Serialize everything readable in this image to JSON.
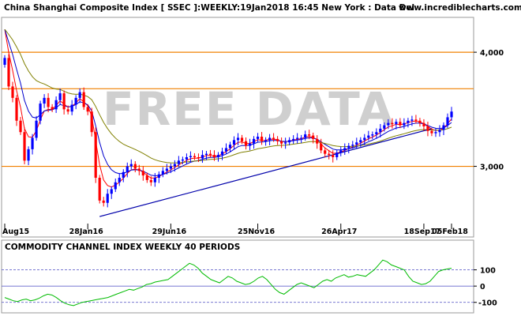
{
  "header": {
    "title": "China Shanghai Composite Index [ SSEC ]:WEEKLY:19Jan2018 16:45 New York : Data Del..",
    "site": "www.incrediblecharts.com"
  },
  "watermark": "FREE DATA",
  "chart_data": [
    {
      "type": "candlestick",
      "title": "China Shanghai Composite Index [ SSEC ]:WEEKLY:19Jan2018 16:45 New York : Data Del..",
      "x_tick_labels": [
        "Aug15",
        "28Jan16",
        "29Jun16",
        "25Nov16",
        "26Apr17",
        "18Sep17",
        "05Feb18"
      ],
      "y_tick_labels": [
        "4,000",
        "3,000"
      ],
      "ylim": [
        2450,
        4250
      ],
      "grid": false,
      "horizontal_lines": [
        4000,
        3680,
        3000
      ],
      "colors": {
        "up": "#0000ff",
        "down": "#ff0000",
        "horizontal_lines": "#f08000",
        "ma_fast": "#ff0000",
        "ma_mid": "#0000cc",
        "ma_slow": "#808000",
        "trendline": "#0000aa"
      },
      "close_series": [
        3950,
        3700,
        3600,
        3400,
        3300,
        3050,
        3150,
        3250,
        3400,
        3550,
        3600,
        3520,
        3500,
        3580,
        3640,
        3500,
        3480,
        3540,
        3600,
        3650,
        3520,
        3480,
        3300,
        2900,
        2700,
        2680,
        2760,
        2800,
        2860,
        2900,
        2950,
        3000,
        3020,
        2980,
        2960,
        2920,
        2880,
        2860,
        2900,
        2930,
        2960,
        2980,
        3000,
        3020,
        3050,
        3060,
        3080,
        3090,
        3080,
        3070,
        3100,
        3110,
        3100,
        3080,
        3100,
        3130,
        3160,
        3190,
        3230,
        3250,
        3220,
        3180,
        3200,
        3240,
        3260,
        3220,
        3230,
        3250,
        3240,
        3220,
        3200,
        3210,
        3230,
        3240,
        3250,
        3250,
        3280,
        3270,
        3240,
        3200,
        3140,
        3110,
        3100,
        3080,
        3120,
        3140,
        3160,
        3180,
        3190,
        3210,
        3230,
        3250,
        3270,
        3280,
        3300,
        3330,
        3360,
        3380,
        3370,
        3390,
        3360,
        3380,
        3400,
        3410,
        3400,
        3380,
        3350,
        3310,
        3290,
        3300,
        3320,
        3360,
        3430,
        3480
      ]
    },
    {
      "type": "line",
      "title": "COMMODITY CHANNEL INDEX WEEKLY 40 PERIODS",
      "y_tick_labels": [
        "100",
        "0",
        "-100"
      ],
      "ylim": [
        -145,
        195
      ],
      "reference_lines": [
        100,
        0,
        -100
      ],
      "colors": {
        "line": "#00bb00",
        "reference": "#6666cc"
      },
      "values": [
        -70,
        -80,
        -90,
        -95,
        -85,
        -80,
        -90,
        -85,
        -75,
        -60,
        -50,
        -55,
        -70,
        -90,
        -105,
        -115,
        -120,
        -110,
        -100,
        -95,
        -90,
        -85,
        -80,
        -75,
        -70,
        -60,
        -50,
        -40,
        -30,
        -20,
        -25,
        -15,
        -5,
        10,
        15,
        25,
        30,
        35,
        40,
        60,
        80,
        100,
        120,
        140,
        130,
        110,
        80,
        60,
        40,
        30,
        20,
        40,
        60,
        50,
        30,
        20,
        10,
        15,
        30,
        50,
        60,
        40,
        10,
        -20,
        -40,
        -50,
        -30,
        -10,
        10,
        20,
        10,
        0,
        -10,
        10,
        30,
        40,
        30,
        50,
        60,
        70,
        55,
        60,
        70,
        65,
        60,
        80,
        100,
        130,
        160,
        150,
        130,
        120,
        110,
        100,
        60,
        30,
        20,
        10,
        15,
        30,
        60,
        90,
        100,
        105,
        110
      ]
    }
  ]
}
